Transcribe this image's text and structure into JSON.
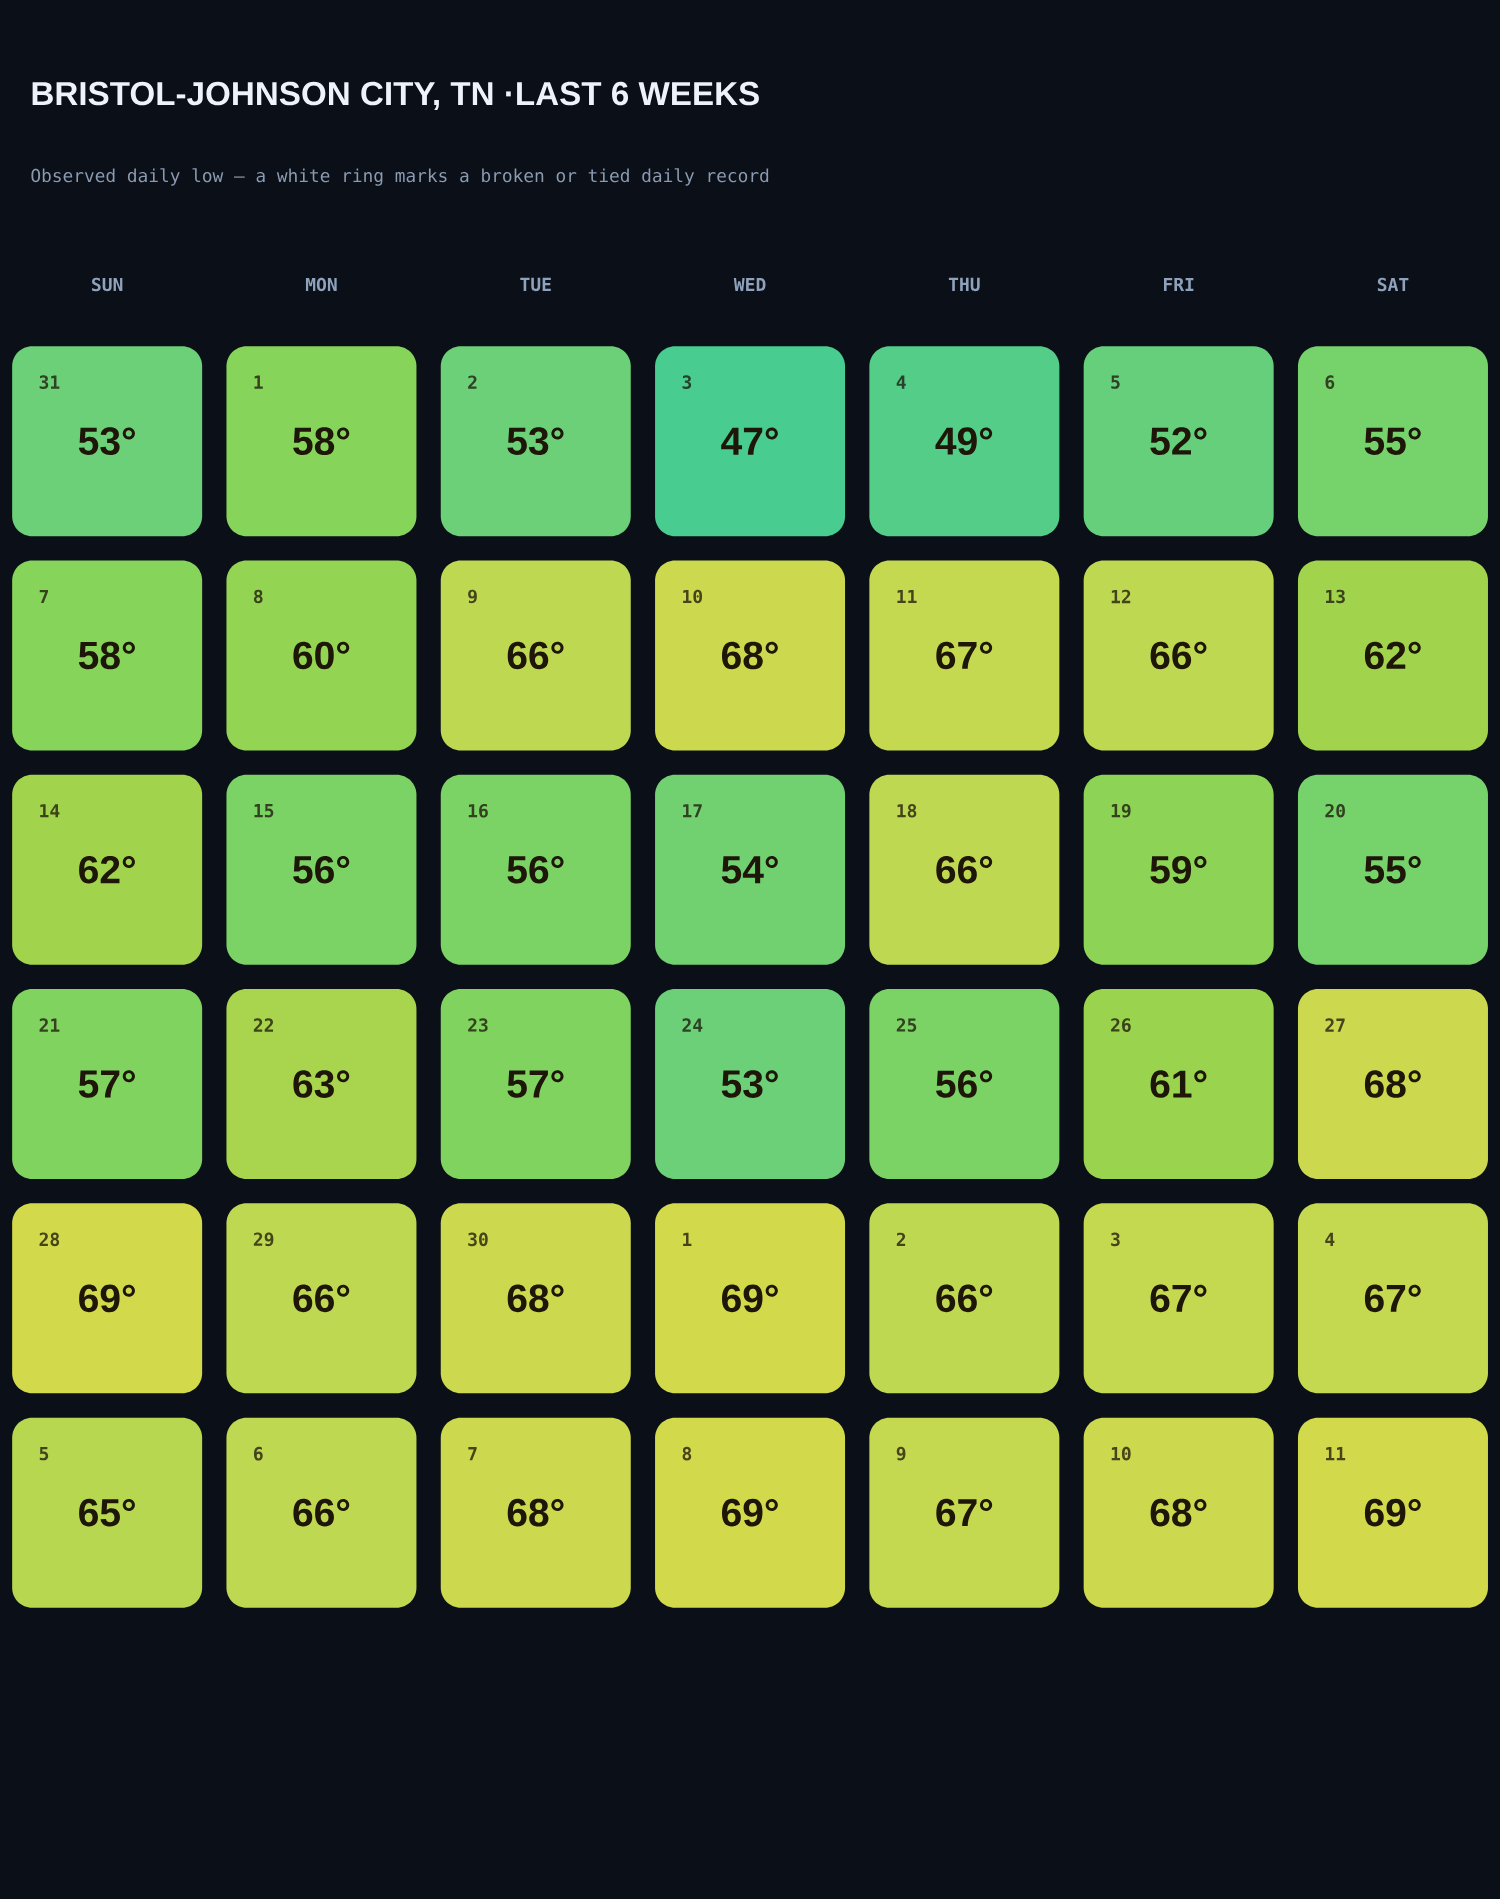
{
  "chart_data": {
    "type": "heatmap",
    "title": "BRISTOL-JOHNSON CITY, TN ·LAST 6 WEEKS",
    "subtitle": "Observed daily low — a white ring marks a broken or tied daily record",
    "categories": [
      "SUN",
      "MON",
      "TUE",
      "WED",
      "THU",
      "FRI",
      "SAT"
    ],
    "y_categories": [
      null,
      null,
      null,
      null,
      null,
      null
    ],
    "cells": [
      [
        53,
        58,
        53,
        47,
        49,
        52,
        55
      ],
      [
        58,
        60,
        66,
        68,
        67,
        66,
        62
      ],
      [
        62,
        56,
        56,
        54,
        66,
        59,
        55
      ],
      [
        57,
        63,
        57,
        53,
        56,
        61,
        68
      ],
      [
        69,
        66,
        68,
        69,
        66,
        67,
        67
      ],
      [
        65,
        66,
        68,
        69,
        67,
        68,
        69
      ]
    ],
    "cell_labels": [
      [
        "53°",
        "58°",
        "53°",
        "47°",
        "49°",
        "52°",
        "55°"
      ],
      [
        "58°",
        "60°",
        "66°",
        "68°",
        "67°",
        "66°",
        "62°"
      ],
      [
        "62°",
        "56°",
        "56°",
        "54°",
        "66°",
        "59°",
        "55°"
      ],
      [
        "57°",
        "63°",
        "57°",
        "53°",
        "56°",
        "61°",
        "68°"
      ],
      [
        "69°",
        "66°",
        "68°",
        "69°",
        "66°",
        "67°",
        "67°"
      ],
      [
        "65°",
        "66°",
        "68°",
        "69°",
        "67°",
        "68°",
        "69°"
      ]
    ],
    "annotations": [
      "31",
      "1",
      "2",
      "3",
      "4",
      "5",
      "6",
      "7",
      "8",
      "9",
      "10",
      "11",
      "12",
      "13",
      "14",
      "15",
      "16",
      "17",
      "18",
      "19",
      "20",
      "21",
      "22",
      "23",
      "24",
      "25",
      "26",
      "27",
      "28",
      "29",
      "30",
      "1",
      "2",
      "3",
      "4",
      "5",
      "6",
      "7",
      "8",
      "9",
      "10",
      "11"
    ]
  }
}
